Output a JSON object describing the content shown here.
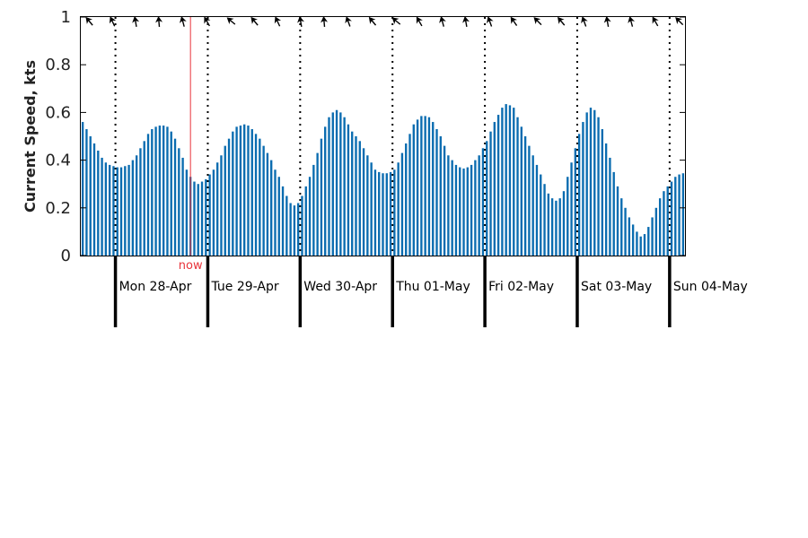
{
  "chart_data": {
    "type": "bar",
    "ylabel": "Current Speed, kts",
    "ylim": [
      0,
      1
    ],
    "yticks": [
      "0",
      "0.2",
      "0.4",
      "0.6",
      "0.8",
      "1"
    ],
    "grid": false,
    "bar_color": "#0a6cb0",
    "now_color": "#e8333a",
    "now_label": "now",
    "now_hour": 28.5,
    "day_labels": [
      "Mon 28-Apr",
      "Tue 29-Apr",
      "Wed 30-Apr",
      "Thu 01-May",
      "Fri 02-May",
      "Sat 03-May",
      "Sun 04-May"
    ],
    "hours_per_day": 24,
    "first_midnight_hour": 9,
    "bar_interval_hours": 1,
    "values": [
      0.56,
      0.53,
      0.5,
      0.47,
      0.44,
      0.41,
      0.39,
      0.38,
      0.375,
      0.37,
      0.37,
      0.375,
      0.38,
      0.4,
      0.42,
      0.45,
      0.48,
      0.51,
      0.53,
      0.54,
      0.545,
      0.545,
      0.54,
      0.52,
      0.49,
      0.45,
      0.41,
      0.36,
      0.33,
      0.31,
      0.3,
      0.31,
      0.32,
      0.34,
      0.36,
      0.39,
      0.42,
      0.46,
      0.49,
      0.52,
      0.54,
      0.545,
      0.55,
      0.545,
      0.53,
      0.51,
      0.49,
      0.46,
      0.43,
      0.4,
      0.36,
      0.33,
      0.29,
      0.25,
      0.22,
      0.21,
      0.22,
      0.25,
      0.29,
      0.33,
      0.38,
      0.43,
      0.49,
      0.54,
      0.58,
      0.6,
      0.61,
      0.6,
      0.58,
      0.55,
      0.52,
      0.5,
      0.48,
      0.45,
      0.42,
      0.39,
      0.36,
      0.35,
      0.345,
      0.345,
      0.35,
      0.36,
      0.39,
      0.43,
      0.47,
      0.51,
      0.55,
      0.57,
      0.585,
      0.585,
      0.58,
      0.56,
      0.53,
      0.5,
      0.46,
      0.42,
      0.4,
      0.38,
      0.37,
      0.365,
      0.37,
      0.38,
      0.4,
      0.42,
      0.45,
      0.48,
      0.52,
      0.56,
      0.59,
      0.62,
      0.635,
      0.63,
      0.62,
      0.58,
      0.54,
      0.5,
      0.46,
      0.42,
      0.38,
      0.34,
      0.3,
      0.26,
      0.24,
      0.23,
      0.24,
      0.27,
      0.33,
      0.39,
      0.45,
      0.51,
      0.56,
      0.6,
      0.62,
      0.61,
      0.58,
      0.53,
      0.47,
      0.41,
      0.35,
      0.29,
      0.24,
      0.2,
      0.16,
      0.13,
      0.1,
      0.08,
      0.09,
      0.12,
      0.16,
      0.2,
      0.24,
      0.27,
      0.29,
      0.31,
      0.33,
      0.34,
      0.345
    ]
  }
}
